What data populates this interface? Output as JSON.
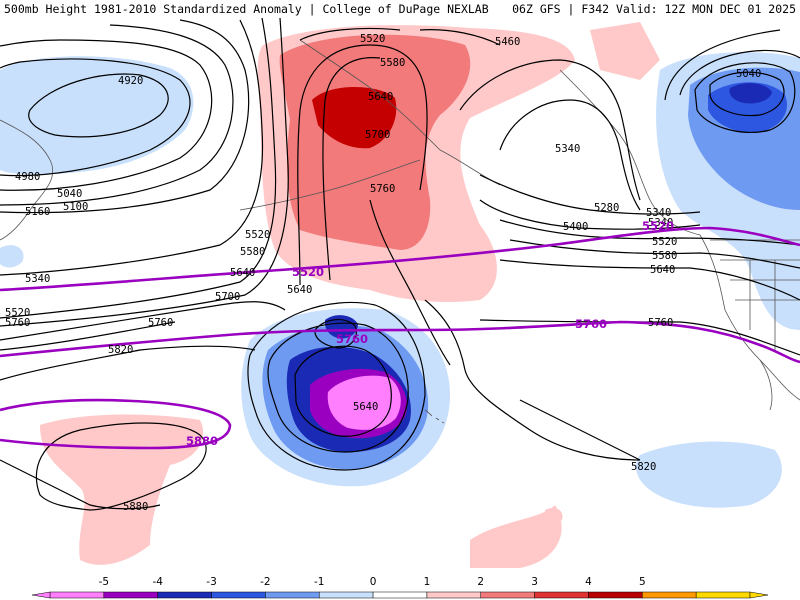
{
  "header": {
    "left_title": "500mb Height 1981-2010 Standardized Anomaly | College of DuPage NEXLAB",
    "right_title": "06Z GFS | F342 Valid: 12Z MON DEC 01 2025"
  },
  "colors": {
    "line_contour": "#000000",
    "highlight_contour": "#9a00c0",
    "coastline": "#555555"
  },
  "height_labels": [
    "5520",
    "5460",
    "5580",
    "4920",
    "5640",
    "5700",
    "4980",
    "5040",
    "5100",
    "5160",
    "5340",
    "5040",
    "5340",
    "5280",
    "5400",
    "5340",
    "5760",
    "5520",
    "5580",
    "5640",
    "5520",
    "5340",
    "5520",
    "5580",
    "5640",
    "5700",
    "5760",
    "5640",
    "5820",
    "5640",
    "5880",
    "5820",
    "5760",
    "5760"
  ],
  "highlight_labels": [
    "5520",
    "5760",
    "5760",
    "5880",
    "5520"
  ],
  "colorbar": {
    "levels": [
      "-5",
      "-4",
      "-3",
      "-2",
      "-1",
      "0",
      "1",
      "2",
      "3",
      "4",
      "5"
    ],
    "colors": [
      "#ff7fff",
      "#9a00c0",
      "#1a2ab5",
      "#2d57e0",
      "#6f9af2",
      "#c9e0fc",
      "#ffffff",
      "#ffc9c9",
      "#f27a7a",
      "#e03333",
      "#b80000",
      "#ff9900",
      "#ffd900"
    ]
  }
}
